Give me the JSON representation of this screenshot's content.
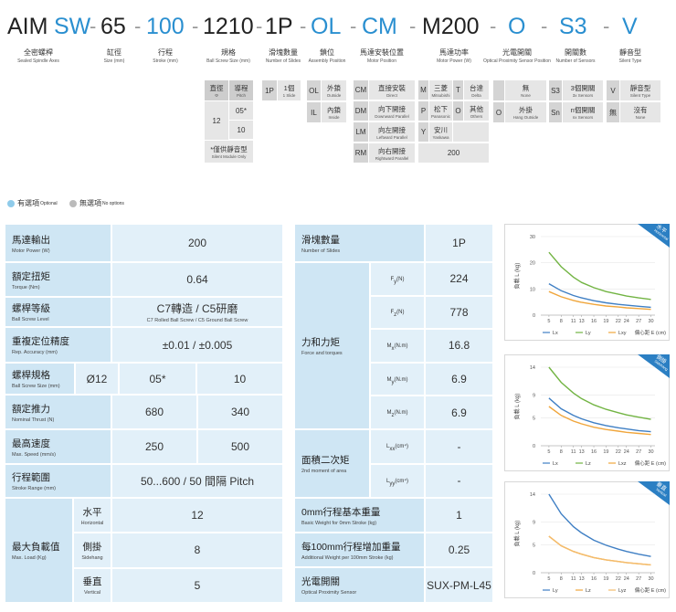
{
  "header": {
    "code": [
      "AIM",
      "SW",
      "65",
      "100",
      "1210",
      "1P",
      "OL",
      "CM",
      "M200",
      "O",
      "S3",
      "V"
    ],
    "separator": "-",
    "labels": [
      {
        "cn": "全密螺桿",
        "en": "Sealed Spindle Axes"
      },
      {
        "cn": "缸徑",
        "en": "Size (mm)"
      },
      {
        "cn": "行程",
        "en": "Stroke (mm)"
      },
      {
        "cn": "規格",
        "en": "Ball Screw Size (mm)"
      },
      {
        "cn": "滑塊數量",
        "en": "Number of Slides"
      },
      {
        "cn": "鎖位",
        "en": "Assembly Position"
      },
      {
        "cn": "馬達安裝位置",
        "en": "Motor Position"
      },
      {
        "cn": "馬達功率",
        "en": "Motor Power (W)"
      },
      {
        "cn": "光電開關",
        "en": "Optical Proximity Sensor Position"
      },
      {
        "cn": "開關數",
        "en": "Number of Sensors"
      },
      {
        "cn": "靜音型",
        "en": "Silent Type"
      }
    ]
  },
  "options": {
    "ball_screw": {
      "head": [
        {
          "cn": "直徑",
          "en": "Φ"
        },
        {
          "cn": "導程",
          "en": "Pitch"
        }
      ],
      "diameter": 12,
      "pitches": [
        "05*",
        10
      ],
      "note": {
        "cn": "*僅供靜音型",
        "en": "Silent Module Only"
      }
    },
    "slides": [
      {
        "code": "1P",
        "cn": "1個",
        "en": "1 Slide"
      }
    ],
    "assembly": [
      {
        "code": "OL",
        "cn": "外鎖",
        "en": "Outside"
      },
      {
        "code": "IL",
        "cn": "內鎖",
        "en": "Inside"
      }
    ],
    "motor_position": [
      {
        "code": "CM",
        "cn": "直接安裝",
        "en": "Direct"
      },
      {
        "code": "DM",
        "cn": "向下開接",
        "en": "Downward Parallel"
      },
      {
        "code": "LM",
        "cn": "向左開接",
        "en": "Leftward Parallel"
      },
      {
        "code": "RM",
        "cn": "向右開接",
        "en": "Rightward Parallel"
      }
    ],
    "motor_power": {
      "brands": [
        {
          "code": "M",
          "cn": "三菱",
          "en": "Mitsubishi"
        },
        {
          "code": "T",
          "cn": "台達",
          "en": "Delta"
        },
        {
          "code": "P",
          "cn": "松下",
          "en": "Panasonic"
        },
        {
          "code": "O",
          "cn": "其他",
          "en": "Others"
        },
        {
          "code": "Y",
          "cn": "安川",
          "en": "Yaskawa"
        }
      ],
      "watt": 200
    },
    "sensor": [
      {
        "cn": "無",
        "en": "None"
      },
      {
        "code": "O",
        "cn": "外掛",
        "en": "Hang Outside"
      }
    ],
    "sensor_count": [
      {
        "code": "S3",
        "cn": "3個開關",
        "en": "3x Sensors"
      },
      {
        "code": "Sn",
        "cn": "n個開關",
        "en": "nx Sensors"
      }
    ],
    "silent": [
      {
        "code": "V",
        "cn": "靜音型",
        "en": "Silent Type"
      },
      {
        "code": "無",
        "cn": "沒有",
        "en": "None"
      }
    ]
  },
  "legend": [
    {
      "cn": "有選項",
      "en": "Optional"
    },
    {
      "cn": "無選項",
      "en": "No options"
    }
  ],
  "spec_table": {
    "rows": [
      {
        "cn": "馬達輸出",
        "en": "Motor Power (W)",
        "values": [
          200
        ]
      },
      {
        "cn": "額定扭矩",
        "en": "Torque (Nm)",
        "values": [
          0.64
        ]
      },
      {
        "cn": "螺桿等級",
        "en": "Ball Screw Level",
        "values": [
          "C7轉造 / C5研磨"
        ],
        "note": "C7 Rolled Ball Screw / C5 Ground Ball Screw"
      },
      {
        "cn": "重複定位精度",
        "en": "Rep. Accuracy (mm)",
        "values": [
          "±0.01 / ±0.005"
        ]
      },
      {
        "cn": "螺桿規格",
        "en": "Ball Screw Size (mm)",
        "values": [
          "Ø12",
          "05*",
          "10"
        ]
      },
      {
        "cn": "額定推力",
        "en": "Nominal Thrust (N)",
        "values": [
          680,
          340
        ]
      },
      {
        "cn": "最高速度",
        "en": "Max. Speed (mm/s)",
        "values": [
          250,
          500
        ]
      },
      {
        "cn": "行程範圍",
        "en": "Stroke Range (mm)",
        "values": [
          "50...600 / 50 間隔 Pitch"
        ]
      }
    ],
    "max_load": {
      "cn": "最大負載值",
      "en": "Max. Load (Kg)",
      "rows": [
        {
          "cn": "水平",
          "en": "Horizontal",
          "value": 12
        },
        {
          "cn": "側掛",
          "en": "Sidehang",
          "value": 8
        },
        {
          "cn": "垂直",
          "en": "Vertical",
          "value": 5
        }
      ]
    }
  },
  "force_table": {
    "slides": {
      "cn": "滑塊數量",
      "en": "Number of Slides",
      "value": "1P"
    },
    "force": {
      "cn": "力和力矩",
      "en": "Force and torques",
      "rows": [
        {
          "symbol": "F",
          "sub": "y",
          "unit": "(N)",
          "value": 224
        },
        {
          "symbol": "F",
          "sub": "z",
          "unit": "(N)",
          "value": 778
        },
        {
          "symbol": "M",
          "sub": "x",
          "unit": "(N.m)",
          "value": 16.8
        },
        {
          "symbol": "M",
          "sub": "y",
          "unit": "(N.m)",
          "value": 6.9
        },
        {
          "symbol": "M",
          "sub": "z",
          "unit": "(N.m)",
          "value": 6.9
        }
      ]
    },
    "moment": {
      "cn": "面積二次矩",
      "en": "2nd moment of area",
      "rows": [
        {
          "symbol": "L",
          "sub": "xx",
          "unit": "(cm⁴)",
          "value": "-"
        },
        {
          "symbol": "L",
          "sub": "yy",
          "unit": "(cm⁴)",
          "value": "-"
        }
      ]
    },
    "weight0": {
      "cn": "0mm行程基本重量",
      "en": "Basic Weight for 0mm Stroke (kg)",
      "value": 1
    },
    "weight100": {
      "cn": "每100mm行程增加重量",
      "en": "Additional Weight per 100mm Stroke (kg)",
      "value": 0.25
    },
    "sensor": {
      "cn": "光電開關",
      "en": "Optical Proximity Sensor",
      "value": "SUX-PM-L45"
    }
  },
  "chart_data": [
    {
      "type": "line",
      "tag": [
        "水平",
        "Horizontal"
      ],
      "y_label": "負載 L (kg)",
      "x_label": "偏心距 E (cm)",
      "x": [
        5,
        8,
        11,
        13,
        16,
        19,
        22,
        24,
        27,
        30
      ],
      "xlim": [
        3,
        31
      ],
      "xticks": [
        5,
        8,
        11,
        13,
        16,
        19,
        22,
        24,
        27,
        30
      ],
      "ylim": [
        0,
        30
      ],
      "yticks": [
        0,
        10,
        20,
        30
      ],
      "grid": true,
      "series": [
        {
          "name": "Lx",
          "color": "#3f7fc4",
          "values": [
            12,
            9.3,
            7.5,
            6.6,
            5.5,
            4.7,
            4.1,
            3.8,
            3.4,
            3
          ]
        },
        {
          "name": "Ly",
          "color": "#72b443",
          "values": [
            24,
            18.5,
            14.5,
            12.5,
            10.5,
            9,
            8,
            7.3,
            6.6,
            6
          ]
        },
        {
          "name": "Lxy",
          "color": "#f0a63c",
          "values": [
            9,
            7,
            5.6,
            4.9,
            4.1,
            3.5,
            3.1,
            2.8,
            2.5,
            2.2
          ]
        }
      ]
    },
    {
      "type": "line",
      "tag": [
        "側掛",
        "Sidehang"
      ],
      "y_label": "負載 L (kg)",
      "x_label": "偏心距 E (cm)",
      "x": [
        5,
        8,
        11,
        13,
        16,
        19,
        22,
        24,
        27,
        30
      ],
      "xlim": [
        3,
        31
      ],
      "xticks": [
        5,
        8,
        11,
        13,
        16,
        19,
        22,
        24,
        27,
        30
      ],
      "ylim": [
        0,
        14
      ],
      "yticks": [
        0,
        5,
        9,
        14
      ],
      "grid": true,
      "series": [
        {
          "name": "Lx",
          "color": "#3f7fc4",
          "values": [
            8.5,
            6.6,
            5.4,
            4.8,
            4.1,
            3.6,
            3.2,
            3,
            2.7,
            2.5
          ]
        },
        {
          "name": "Lz",
          "color": "#72b443",
          "values": [
            14,
            11.3,
            9.4,
            8.4,
            7.3,
            6.5,
            5.9,
            5.5,
            5.1,
            4.7
          ]
        },
        {
          "name": "Lxz",
          "color": "#f0a63c",
          "values": [
            7,
            5.4,
            4.4,
            3.9,
            3.3,
            2.9,
            2.6,
            2.4,
            2.2,
            2
          ]
        }
      ]
    },
    {
      "type": "line",
      "tag": [
        "垂直",
        "Vertical"
      ],
      "y_label": "負載 L (kg)",
      "x_label": "偏心距 E (cm)",
      "x": [
        5,
        8,
        11,
        13,
        16,
        19,
        22,
        24,
        27,
        30
      ],
      "xlim": [
        3,
        31
      ],
      "xticks": [
        5,
        8,
        11,
        13,
        16,
        19,
        22,
        24,
        27,
        30
      ],
      "ylim": [
        0,
        14
      ],
      "yticks": [
        0,
        5,
        9,
        14
      ],
      "grid": true,
      "series": [
        {
          "name": "Ly",
          "color": "#3f7fc4",
          "values": [
            14,
            10.5,
            8.2,
            7.1,
            5.8,
            4.9,
            4.2,
            3.8,
            3.3,
            2.9
          ]
        },
        {
          "name": "Lz",
          "color": "#f0a63c",
          "values": [
            6.5,
            4.8,
            3.8,
            3.3,
            2.7,
            2.3,
            2,
            1.8,
            1.6,
            1.4
          ]
        },
        {
          "name": "Lyz",
          "color": "#f4bc6c",
          "values": [
            6.5,
            4.8,
            3.8,
            3.3,
            2.7,
            2.3,
            2,
            1.8,
            1.6,
            1.4
          ]
        }
      ]
    }
  ]
}
